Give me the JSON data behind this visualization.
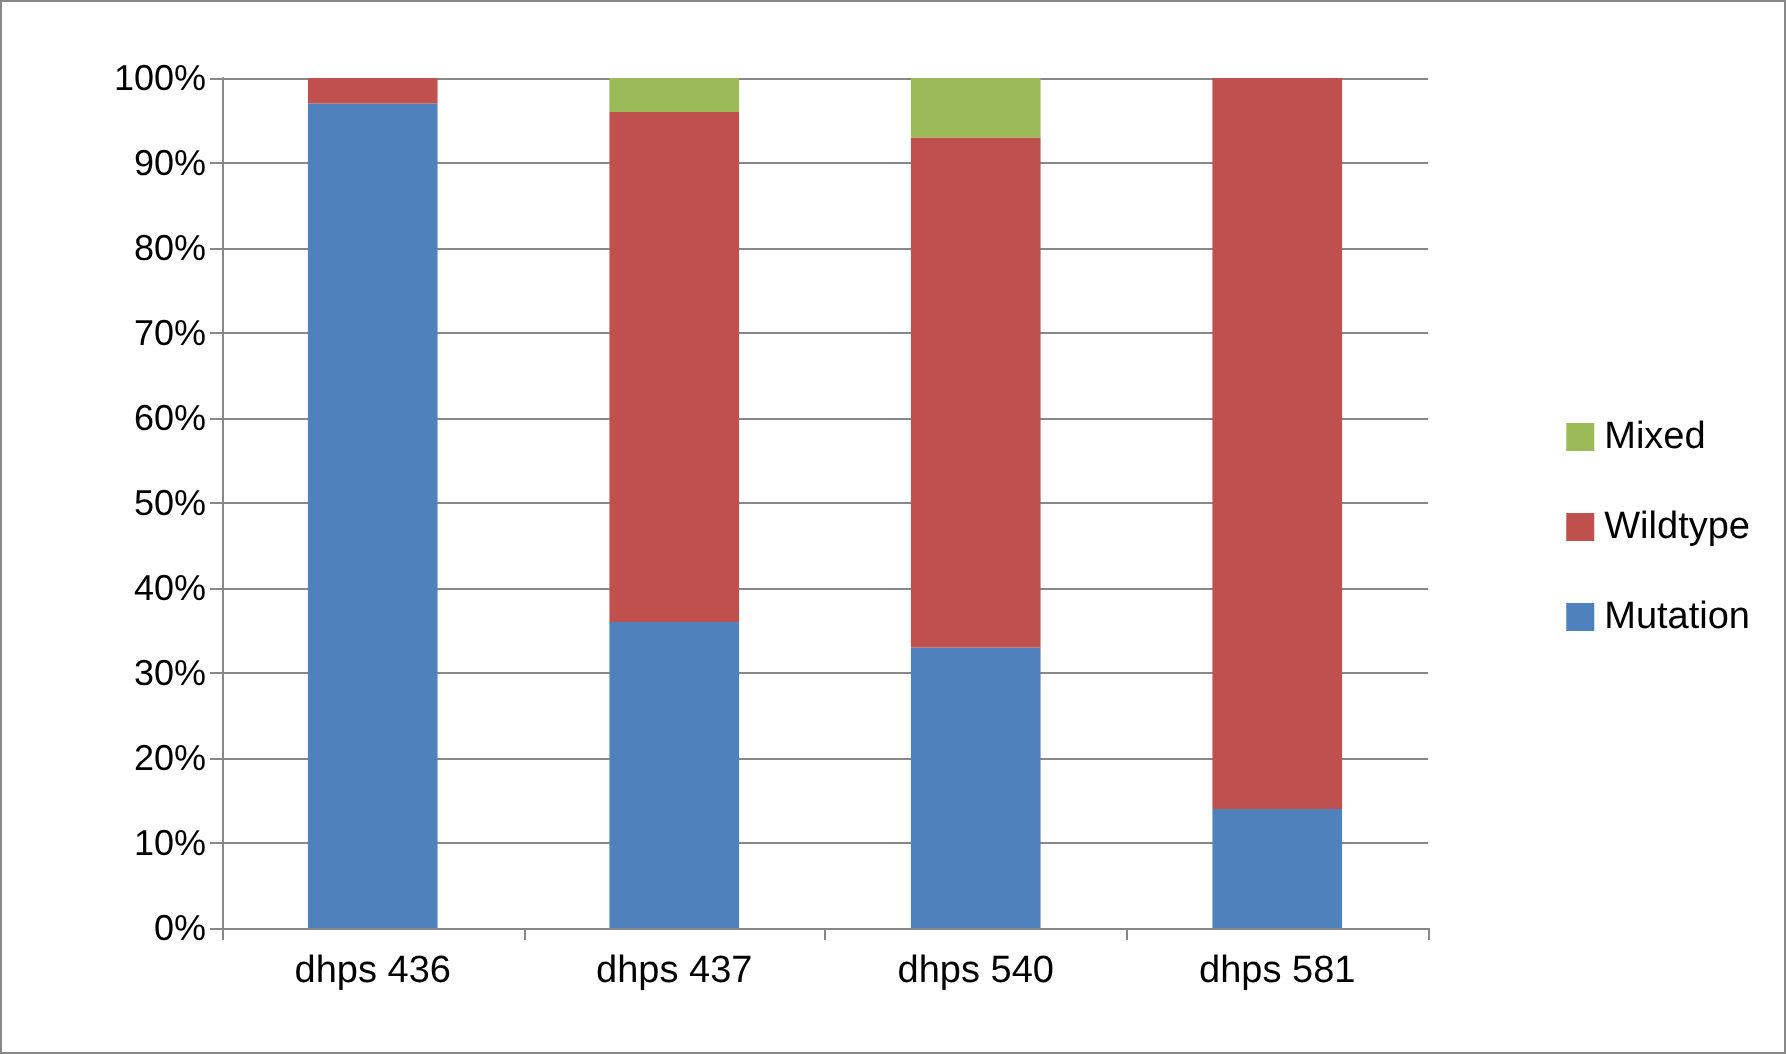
{
  "chart_data": {
    "type": "bar",
    "stacked": true,
    "categories": [
      "dhps 436",
      "dhps 437",
      "dhps 540",
      "dhps 581"
    ],
    "series": [
      {
        "name": "Mutation",
        "color": "#4f81bd",
        "values": [
          97,
          36,
          33,
          14
        ]
      },
      {
        "name": "Wildtype",
        "color": "#c0504d",
        "values": [
          3,
          60,
          60,
          86
        ]
      },
      {
        "name": "Mixed",
        "color": "#9bbb59",
        "values": [
          0,
          4,
          7,
          0
        ]
      }
    ],
    "ylim": [
      0,
      100
    ],
    "yticks": [
      {
        "value": 0,
        "label": "0%"
      },
      {
        "value": 10,
        "label": "10%"
      },
      {
        "value": 20,
        "label": "20%"
      },
      {
        "value": 30,
        "label": "30%"
      },
      {
        "value": 40,
        "label": "40%"
      },
      {
        "value": 50,
        "label": "50%"
      },
      {
        "value": 60,
        "label": "60%"
      },
      {
        "value": 70,
        "label": "70%"
      },
      {
        "value": 80,
        "label": "80%"
      },
      {
        "value": 90,
        "label": "90%"
      },
      {
        "value": 100,
        "label": "100%"
      }
    ],
    "grid": "y",
    "legend": "right"
  }
}
